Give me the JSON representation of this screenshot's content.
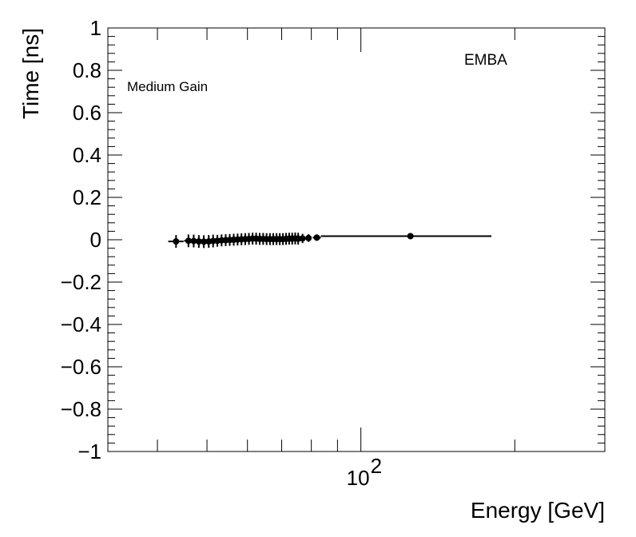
{
  "chart_data": {
    "type": "scatter",
    "xlabel": "Energy [GeV]",
    "ylabel": "Time [ns]",
    "x_scale": "log",
    "xlim": [
      32,
      300
    ],
    "ylim": [
      -1,
      1
    ],
    "x_tick_major": [
      100
    ],
    "x_tick_labels": [
      {
        "base": "10",
        "exp": "2"
      }
    ],
    "y_ticks": [
      -1,
      -0.8,
      -0.6,
      -0.4,
      -0.2,
      0,
      0.2,
      0.4,
      0.6,
      0.8,
      1
    ],
    "y_tick_labels": [
      "−1",
      "−0.8",
      "−0.6",
      "−0.4",
      "−0.2",
      "0",
      "0.2",
      "0.4",
      "0.6",
      "0.8",
      "1"
    ],
    "grid": false,
    "annotations": [
      "EMBA",
      "Medium Gain"
    ],
    "points": [
      {
        "x": 43.5,
        "y": -0.008,
        "xerr": [
          1.5,
          1.5
        ],
        "yerr": 0.03
      },
      {
        "x": 46.0,
        "y": -0.005,
        "xerr": [
          0.9,
          0.9
        ],
        "yerr": 0.03
      },
      {
        "x": 47.1,
        "y": -0.006,
        "xerr": [
          0.5,
          0.5
        ],
        "yerr": 0.03
      },
      {
        "x": 48.2,
        "y": -0.008,
        "xerr": [
          0.5,
          0.5
        ],
        "yerr": 0.03
      },
      {
        "x": 49.3,
        "y": -0.009,
        "xerr": [
          0.5,
          0.5
        ],
        "yerr": 0.03
      },
      {
        "x": 50.4,
        "y": -0.008,
        "xerr": [
          0.5,
          0.5
        ],
        "yerr": 0.03
      },
      {
        "x": 51.4,
        "y": -0.006,
        "xerr": [
          0.5,
          0.5
        ],
        "yerr": 0.03
      },
      {
        "x": 52.4,
        "y": -0.005,
        "xerr": [
          0.5,
          0.5
        ],
        "yerr": 0.028
      },
      {
        "x": 53.4,
        "y": -0.003,
        "xerr": [
          0.5,
          0.5
        ],
        "yerr": 0.028
      },
      {
        "x": 54.4,
        "y": -0.002,
        "xerr": [
          0.5,
          0.5
        ],
        "yerr": 0.028
      },
      {
        "x": 55.4,
        "y": -0.001,
        "xerr": [
          0.5,
          0.5
        ],
        "yerr": 0.028
      },
      {
        "x": 56.4,
        "y": 0.0,
        "xerr": [
          0.5,
          0.5
        ],
        "yerr": 0.028
      },
      {
        "x": 57.4,
        "y": 0.001,
        "xerr": [
          0.5,
          0.5
        ],
        "yerr": 0.028
      },
      {
        "x": 58.4,
        "y": 0.002,
        "xerr": [
          0.5,
          0.5
        ],
        "yerr": 0.028
      },
      {
        "x": 59.4,
        "y": 0.003,
        "xerr": [
          0.5,
          0.5
        ],
        "yerr": 0.028
      },
      {
        "x": 60.4,
        "y": 0.004,
        "xerr": [
          0.5,
          0.5
        ],
        "yerr": 0.028
      },
      {
        "x": 61.4,
        "y": 0.005,
        "xerr": [
          0.5,
          0.5
        ],
        "yerr": 0.028
      },
      {
        "x": 62.4,
        "y": 0.005,
        "xerr": [
          0.5,
          0.5
        ],
        "yerr": 0.028
      },
      {
        "x": 63.4,
        "y": 0.004,
        "xerr": [
          0.5,
          0.5
        ],
        "yerr": 0.028
      },
      {
        "x": 64.4,
        "y": 0.004,
        "xerr": [
          0.5,
          0.5
        ],
        "yerr": 0.028
      },
      {
        "x": 65.4,
        "y": 0.003,
        "xerr": [
          0.5,
          0.5
        ],
        "yerr": 0.028
      },
      {
        "x": 66.4,
        "y": 0.003,
        "xerr": [
          0.5,
          0.5
        ],
        "yerr": 0.028
      },
      {
        "x": 67.4,
        "y": 0.003,
        "xerr": [
          0.5,
          0.5
        ],
        "yerr": 0.028
      },
      {
        "x": 68.4,
        "y": 0.003,
        "xerr": [
          0.5,
          0.5
        ],
        "yerr": 0.028
      },
      {
        "x": 69.4,
        "y": 0.003,
        "xerr": [
          0.5,
          0.5
        ],
        "yerr": 0.028
      },
      {
        "x": 70.4,
        "y": 0.003,
        "xerr": [
          0.5,
          0.5
        ],
        "yerr": 0.028
      },
      {
        "x": 71.4,
        "y": 0.004,
        "xerr": [
          0.5,
          0.5
        ],
        "yerr": 0.028
      },
      {
        "x": 72.4,
        "y": 0.005,
        "xerr": [
          0.5,
          0.5
        ],
        "yerr": 0.028
      },
      {
        "x": 73.4,
        "y": 0.005,
        "xerr": [
          0.5,
          0.5
        ],
        "yerr": 0.028
      },
      {
        "x": 74.4,
        "y": 0.006,
        "xerr": [
          0.5,
          0.5
        ],
        "yerr": 0.028
      },
      {
        "x": 75.4,
        "y": 0.005,
        "xerr": [
          0.5,
          0.5
        ],
        "yerr": 0.028
      },
      {
        "x": 76.9,
        "y": 0.006,
        "xerr": [
          1.0,
          1.0
        ],
        "yerr": 0.022
      },
      {
        "x": 79.0,
        "y": 0.008,
        "xerr": [
          1.0,
          1.0
        ],
        "yerr": 0.018
      },
      {
        "x": 82.0,
        "y": 0.01,
        "xerr": [
          1.5,
          1.5
        ],
        "yerr": 0.015
      },
      {
        "x": 125.0,
        "y": 0.017,
        "xerr": [
          41.5,
          55.0
        ],
        "yerr": 0.01
      }
    ]
  }
}
